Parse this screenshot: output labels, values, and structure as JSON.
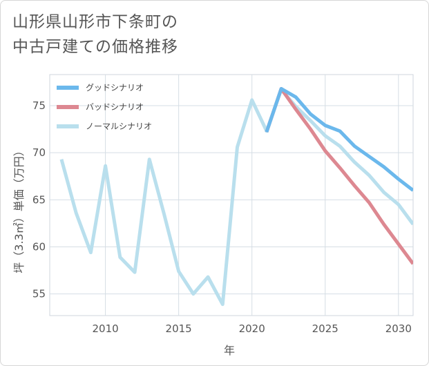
{
  "chart_data": {
    "type": "line",
    "title_line1": "山形県山形市下条町の",
    "title_line2": "中古戸建ての価格推移",
    "xlabel": "年",
    "ylabel": "坪（3.3㎡）単価（万円）",
    "xlim": [
      2006.2,
      2031.0
    ],
    "ylim": [
      52.7,
      78.3
    ],
    "xticks": [
      2010,
      2015,
      2020,
      2025,
      2030
    ],
    "xtick_labels": [
      "2010",
      "2015",
      "2020",
      "2025",
      "2030"
    ],
    "yticks": [
      55,
      60,
      65,
      70,
      75
    ],
    "ytick_labels": [
      "55",
      "60",
      "65",
      "70",
      "75"
    ],
    "grid": true,
    "legend_position": "top-left",
    "series": [
      {
        "name": "グッドシナリオ",
        "color": "#6bb8ec",
        "x": [
          2021,
          2022,
          2023,
          2024,
          2025,
          2026,
          2027,
          2028,
          2029,
          2030,
          2031
        ],
        "values": [
          72.2,
          76.8,
          75.9,
          74.1,
          72.9,
          72.3,
          70.7,
          69.6,
          68.5,
          67.2,
          66.0
        ]
      },
      {
        "name": "バッドシナリオ",
        "color": "#dd8891",
        "x": [
          2021,
          2022,
          2023,
          2024,
          2025,
          2026,
          2027,
          2028,
          2029,
          2030,
          2031
        ],
        "values": [
          72.2,
          76.8,
          74.6,
          72.5,
          70.2,
          68.4,
          66.5,
          64.7,
          62.4,
          60.3,
          58.2
        ]
      },
      {
        "name": "ノーマルシナリオ",
        "color": "#b9dfed",
        "x": [
          2007,
          2008,
          2009,
          2010,
          2011,
          2012,
          2013,
          2014,
          2015,
          2016,
          2017,
          2018,
          2019,
          2020,
          2021,
          2022,
          2023,
          2024,
          2025,
          2026,
          2027,
          2028,
          2029,
          2030,
          2031
        ],
        "values": [
          69.3,
          63.6,
          59.4,
          68.6,
          58.9,
          57.3,
          69.3,
          63.5,
          57.4,
          55.0,
          56.8,
          53.9,
          70.6,
          75.6,
          72.3,
          76.7,
          74.9,
          73.4,
          71.8,
          70.7,
          69.0,
          67.6,
          65.8,
          64.5,
          62.4
        ]
      }
    ]
  }
}
